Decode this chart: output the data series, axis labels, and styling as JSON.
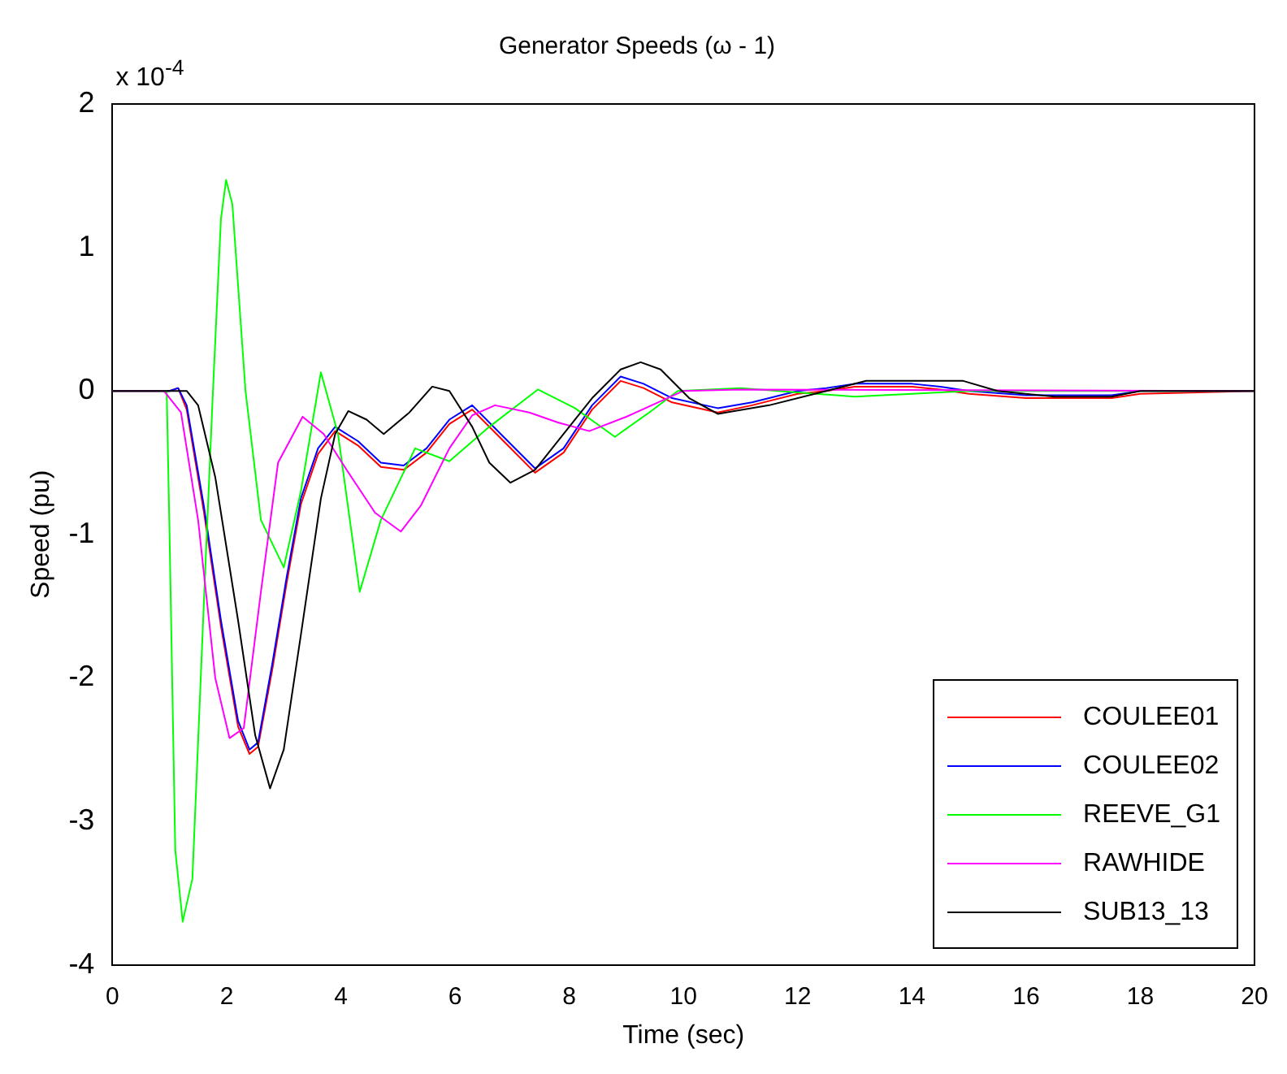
{
  "chart_data": {
    "type": "line",
    "title": "Generator Speeds (ω - 1)",
    "xlabel": "Time (sec)",
    "ylabel": "Speed (pu)",
    "annotations": [
      "x 10$^{-4}$"
    ],
    "xlim": [
      0,
      20
    ],
    "xticks": [
      0,
      2,
      4,
      6,
      8,
      10,
      12,
      14,
      16,
      18,
      20
    ],
    "ylim": [
      -4,
      2
    ],
    "yticks": [
      -4,
      -3,
      -2,
      -1,
      0,
      1,
      2
    ],
    "grid": false,
    "legend": "bottom right",
    "marker": "none",
    "line_style": "solid",
    "series": [
      {
        "name": "COULEE01",
        "color": "#ff0000",
        "x": [
          0,
          1.0,
          1.15,
          1.3,
          1.6,
          1.9,
          2.2,
          2.4,
          2.55,
          2.8,
          3.05,
          3.3,
          3.6,
          3.9,
          4.3,
          4.7,
          5.1,
          5.5,
          5.9,
          6.3,
          6.8,
          7.4,
          7.9,
          8.4,
          8.9,
          9.3,
          9.8,
          10.6,
          11.2,
          12,
          12.5,
          13,
          14,
          14.5,
          15,
          16,
          17.5,
          18,
          20
        ],
        "values": [
          0,
          0,
          0.02,
          -0.13,
          -0.84,
          -1.64,
          -2.34,
          -2.53,
          -2.48,
          -1.94,
          -1.34,
          -0.79,
          -0.44,
          -0.28,
          -0.38,
          -0.53,
          -0.55,
          -0.43,
          -0.23,
          -0.13,
          -0.33,
          -0.57,
          -0.43,
          -0.13,
          0.07,
          0.02,
          -0.08,
          -0.15,
          -0.1,
          -0.02,
          0,
          0.03,
          0.03,
          0.01,
          -0.02,
          -0.05,
          -0.05,
          -0.02,
          0
        ]
      },
      {
        "name": "COULEE02",
        "color": "#0000ff",
        "x": [
          0,
          1.0,
          1.15,
          1.3,
          1.6,
          1.9,
          2.2,
          2.4,
          2.55,
          2.8,
          3.05,
          3.3,
          3.6,
          3.9,
          4.3,
          4.7,
          5.1,
          5.5,
          5.9,
          6.3,
          6.8,
          7.4,
          7.9,
          8.4,
          8.9,
          9.3,
          9.8,
          10.6,
          11.2,
          12,
          12.5,
          13,
          14,
          14.5,
          15,
          16,
          17.5,
          18,
          20
        ],
        "values": [
          0,
          0,
          0.02,
          -0.1,
          -0.8,
          -1.6,
          -2.3,
          -2.5,
          -2.45,
          -1.9,
          -1.3,
          -0.75,
          -0.4,
          -0.25,
          -0.35,
          -0.5,
          -0.52,
          -0.4,
          -0.2,
          -0.1,
          -0.3,
          -0.54,
          -0.4,
          -0.1,
          0.1,
          0.05,
          -0.05,
          -0.12,
          -0.08,
          0,
          0.02,
          0.05,
          0.05,
          0.03,
          0,
          -0.03,
          -0.03,
          0,
          0
        ]
      },
      {
        "name": "REEVE_G1",
        "color": "#00ff00",
        "x": [
          0,
          0.95,
          1.0,
          1.1,
          1.23,
          1.4,
          1.63,
          1.76,
          1.9,
          1.99,
          2.1,
          2.33,
          2.6,
          3.0,
          3.3,
          3.65,
          3.95,
          4.33,
          4.7,
          5.3,
          5.9,
          6.6,
          7.45,
          8.1,
          8.8,
          9.4,
          9.9,
          11,
          13,
          14,
          15,
          20
        ],
        "values": [
          0,
          0,
          -1.0,
          -3.2,
          -3.7,
          -3.4,
          -1.2,
          0,
          1.2,
          1.47,
          1.3,
          0,
          -0.9,
          -1.23,
          -0.7,
          0.13,
          -0.3,
          -1.4,
          -0.9,
          -0.4,
          -0.49,
          -0.25,
          0.01,
          -0.12,
          -0.32,
          -0.15,
          0,
          0.02,
          -0.04,
          -0.02,
          0,
          0
        ]
      },
      {
        "name": "RAWHIDE",
        "color": "#ff00ff",
        "x": [
          0,
          0.9,
          1.2,
          1.5,
          1.8,
          2.05,
          2.3,
          2.6,
          2.9,
          3.33,
          3.7,
          4.1,
          4.6,
          5.05,
          5.4,
          5.9,
          6.3,
          6.7,
          7.3,
          7.8,
          8.35,
          9.0,
          10.0,
          11,
          20
        ],
        "values": [
          0,
          0,
          -0.15,
          -0.9,
          -2.0,
          -2.42,
          -2.35,
          -1.4,
          -0.5,
          -0.18,
          -0.3,
          -0.55,
          -0.85,
          -0.98,
          -0.8,
          -0.4,
          -0.17,
          -0.1,
          -0.15,
          -0.22,
          -0.28,
          -0.18,
          0,
          0.01,
          0
        ]
      },
      {
        "name": "SUB13_13",
        "color": "#000000",
        "x": [
          0,
          1.3,
          1.5,
          1.8,
          2.2,
          2.5,
          2.76,
          3.0,
          3.3,
          3.65,
          3.9,
          4.13,
          4.45,
          4.75,
          5.2,
          5.6,
          5.9,
          6.3,
          6.6,
          6.97,
          7.4,
          7.9,
          8.4,
          8.9,
          9.25,
          9.6,
          10.1,
          10.6,
          11.5,
          12.5,
          13.2,
          14.9,
          15.5,
          16.5,
          17.5,
          18,
          20
        ],
        "values": [
          0,
          0,
          -0.1,
          -0.6,
          -1.6,
          -2.4,
          -2.77,
          -2.5,
          -1.7,
          -0.75,
          -0.3,
          -0.14,
          -0.2,
          -0.3,
          -0.15,
          0.03,
          0,
          -0.25,
          -0.5,
          -0.64,
          -0.55,
          -0.3,
          -0.05,
          0.15,
          0.2,
          0.15,
          -0.05,
          -0.16,
          -0.1,
          0,
          0.07,
          0.07,
          0,
          -0.04,
          -0.04,
          0,
          0
        ]
      }
    ]
  }
}
